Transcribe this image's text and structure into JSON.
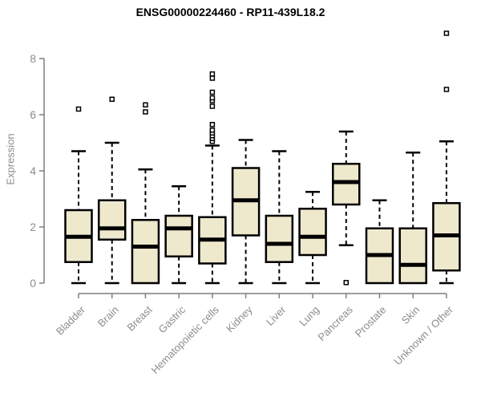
{
  "chart_data": {
    "type": "boxplot",
    "title": "ENSG00000224460 - RP11-439L18.2",
    "ylabel": "Expression",
    "xlabel": "",
    "ylim": [
      0,
      8
    ],
    "yticks": [
      0,
      2,
      4,
      6,
      8
    ],
    "grid": false,
    "legend_position": "none",
    "box_fill": "#EEE8CD",
    "box_stroke": "#000000",
    "median_color": "#000000",
    "whisker_color": "#000000",
    "outlier_color": "#000000",
    "axis_line_color": "#7F7F7F",
    "axis_text_color": "#8C8C8C",
    "background_color": "#FFFFFF",
    "categories": [
      "Bladder",
      "Brain",
      "Breast",
      "Gastric",
      "Hematopoietic cells",
      "Kidney",
      "Liver",
      "Lung",
      "Pancreas",
      "Prostate",
      "Skin",
      "Unknown / Other"
    ],
    "series": [
      {
        "category": "Bladder",
        "whisker_low": 0,
        "q1": 0.75,
        "median": 1.65,
        "q3": 2.6,
        "whisker_high": 4.7,
        "outliers": [
          6.2
        ]
      },
      {
        "category": "Brain",
        "whisker_low": 0,
        "q1": 1.55,
        "median": 1.95,
        "q3": 2.95,
        "whisker_high": 5.0,
        "outliers": [
          6.55
        ]
      },
      {
        "category": "Breast",
        "whisker_low": 0,
        "q1": 0.0,
        "median": 1.3,
        "q3": 2.25,
        "whisker_high": 4.05,
        "outliers": [
          6.1,
          6.35
        ]
      },
      {
        "category": "Gastric",
        "whisker_low": 0,
        "q1": 0.95,
        "median": 1.95,
        "q3": 2.4,
        "whisker_high": 3.45,
        "outliers": []
      },
      {
        "category": "Hematopoietic cells",
        "whisker_low": 0,
        "q1": 0.7,
        "median": 1.55,
        "q3": 2.35,
        "whisker_high": 4.9,
        "outliers": [
          5.05,
          5.15,
          5.25,
          5.35,
          5.45,
          5.65,
          6.3,
          6.5,
          6.6,
          6.8,
          7.3,
          7.45
        ]
      },
      {
        "category": "Kidney",
        "whisker_low": 0,
        "q1": 1.7,
        "median": 2.95,
        "q3": 4.1,
        "whisker_high": 5.1,
        "outliers": []
      },
      {
        "category": "Liver",
        "whisker_low": 0,
        "q1": 0.75,
        "median": 1.4,
        "q3": 2.4,
        "whisker_high": 4.7,
        "outliers": []
      },
      {
        "category": "Lung",
        "whisker_low": 0,
        "q1": 1.0,
        "median": 1.65,
        "q3": 2.65,
        "whisker_high": 3.25,
        "outliers": []
      },
      {
        "category": "Pancreas",
        "whisker_low": 1.35,
        "q1": 2.8,
        "median": 3.6,
        "q3": 4.25,
        "whisker_high": 5.4,
        "outliers": [
          0.02
        ]
      },
      {
        "category": "Prostate",
        "whisker_low": 0,
        "q1": 0.0,
        "median": 1.0,
        "q3": 1.95,
        "whisker_high": 2.95,
        "outliers": []
      },
      {
        "category": "Skin",
        "whisker_low": 0,
        "q1": 0.0,
        "median": 0.65,
        "q3": 1.95,
        "whisker_high": 4.65,
        "outliers": []
      },
      {
        "category": "Unknown / Other",
        "whisker_low": 0,
        "q1": 0.45,
        "median": 1.7,
        "q3": 2.85,
        "whisker_high": 5.05,
        "outliers": [
          6.9,
          8.9
        ]
      }
    ]
  }
}
